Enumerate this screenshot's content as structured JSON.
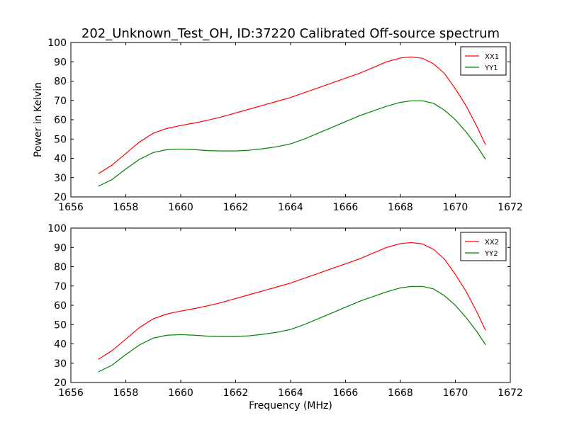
{
  "colors": {
    "xx": "#ff0000",
    "yy": "#008000"
  },
  "chart_data": [
    {
      "type": "line",
      "title": "202_Unknown_Test_OH, ID:37220 Calibrated Off-source spectrum",
      "xlabel": "",
      "ylabel": "Power in Kelvin",
      "xlim": [
        1656,
        1672
      ],
      "ylim": [
        20,
        100
      ],
      "xticks": [
        "1656",
        "1658",
        "1660",
        "1662",
        "1664",
        "1666",
        "1668",
        "1670",
        "1672"
      ],
      "yticks": [
        "20",
        "30",
        "40",
        "50",
        "60",
        "70",
        "80",
        "90",
        "100"
      ],
      "grid": false,
      "legend": "top-right",
      "series": [
        {
          "name": "XX1",
          "color": "#ff0000",
          "x": [
            1657.0,
            1657.5,
            1658.0,
            1658.5,
            1659.0,
            1659.5,
            1660.0,
            1660.5,
            1661.0,
            1661.5,
            1662.0,
            1662.5,
            1663.0,
            1663.5,
            1664.0,
            1664.5,
            1665.0,
            1665.5,
            1666.0,
            1666.5,
            1667.0,
            1667.5,
            1668.0,
            1668.4,
            1668.8,
            1669.2,
            1669.6,
            1670.0,
            1670.4,
            1670.8,
            1671.1
          ],
          "y": [
            32,
            36.5,
            42.5,
            48.5,
            53,
            55.5,
            57,
            58.3,
            59.8,
            61.5,
            63.5,
            65.5,
            67.5,
            69.5,
            71.5,
            74,
            76.5,
            79,
            81.5,
            84,
            87,
            90,
            92,
            92.5,
            91.8,
            89,
            84,
            76,
            67,
            56,
            47
          ]
        },
        {
          "name": "YY1",
          "color": "#008000",
          "x": [
            1657.0,
            1657.5,
            1658.0,
            1658.5,
            1659.0,
            1659.5,
            1660.0,
            1660.5,
            1661.0,
            1661.5,
            1662.0,
            1662.5,
            1663.0,
            1663.5,
            1664.0,
            1664.5,
            1665.0,
            1665.5,
            1666.0,
            1666.5,
            1667.0,
            1667.5,
            1668.0,
            1668.4,
            1668.8,
            1669.2,
            1669.6,
            1670.0,
            1670.4,
            1670.8,
            1671.1
          ],
          "y": [
            25.5,
            29,
            34.5,
            39.5,
            43,
            44.5,
            44.8,
            44.5,
            44,
            43.8,
            43.8,
            44.2,
            45,
            46,
            47.5,
            50,
            53,
            56,
            59,
            62,
            64.5,
            67,
            69,
            69.8,
            69.8,
            68.5,
            65,
            60,
            53.5,
            46,
            39.5
          ]
        }
      ]
    },
    {
      "type": "line",
      "title": "",
      "xlabel": "Frequency (MHz)",
      "ylabel": "",
      "xlim": [
        1656,
        1672
      ],
      "ylim": [
        20,
        100
      ],
      "xticks": [
        "1656",
        "1658",
        "1660",
        "1662",
        "1664",
        "1666",
        "1668",
        "1670",
        "1672"
      ],
      "yticks": [
        "20",
        "30",
        "40",
        "50",
        "60",
        "70",
        "80",
        "90",
        "100"
      ],
      "grid": false,
      "legend": "top-right",
      "series": [
        {
          "name": "XX2",
          "color": "#ff0000",
          "x": [
            1657.0,
            1657.5,
            1658.0,
            1658.5,
            1659.0,
            1659.5,
            1660.0,
            1660.5,
            1661.0,
            1661.5,
            1662.0,
            1662.5,
            1663.0,
            1663.5,
            1664.0,
            1664.5,
            1665.0,
            1665.5,
            1666.0,
            1666.5,
            1667.0,
            1667.5,
            1668.0,
            1668.4,
            1668.8,
            1669.2,
            1669.6,
            1670.0,
            1670.4,
            1670.8,
            1671.1
          ],
          "y": [
            32,
            36.5,
            42.5,
            48.5,
            53,
            55.5,
            57,
            58.3,
            59.8,
            61.5,
            63.5,
            65.5,
            67.5,
            69.5,
            71.5,
            74,
            76.5,
            79,
            81.5,
            84,
            87,
            90,
            92,
            92.5,
            91.8,
            89,
            84,
            76,
            67,
            56,
            47
          ]
        },
        {
          "name": "YY2",
          "color": "#008000",
          "x": [
            1657.0,
            1657.5,
            1658.0,
            1658.5,
            1659.0,
            1659.5,
            1660.0,
            1660.5,
            1661.0,
            1661.5,
            1662.0,
            1662.5,
            1663.0,
            1663.5,
            1664.0,
            1664.5,
            1665.0,
            1665.5,
            1666.0,
            1666.5,
            1667.0,
            1667.5,
            1668.0,
            1668.4,
            1668.8,
            1669.2,
            1669.6,
            1670.0,
            1670.4,
            1670.8,
            1671.1
          ],
          "y": [
            25.5,
            29,
            34.5,
            39.5,
            43,
            44.5,
            44.8,
            44.5,
            44,
            43.8,
            43.8,
            44.2,
            45,
            46,
            47.5,
            50,
            53,
            56,
            59,
            62,
            64.5,
            67,
            69,
            69.8,
            69.8,
            68.5,
            65,
            60,
            53.5,
            46,
            39.5
          ]
        }
      ]
    }
  ]
}
